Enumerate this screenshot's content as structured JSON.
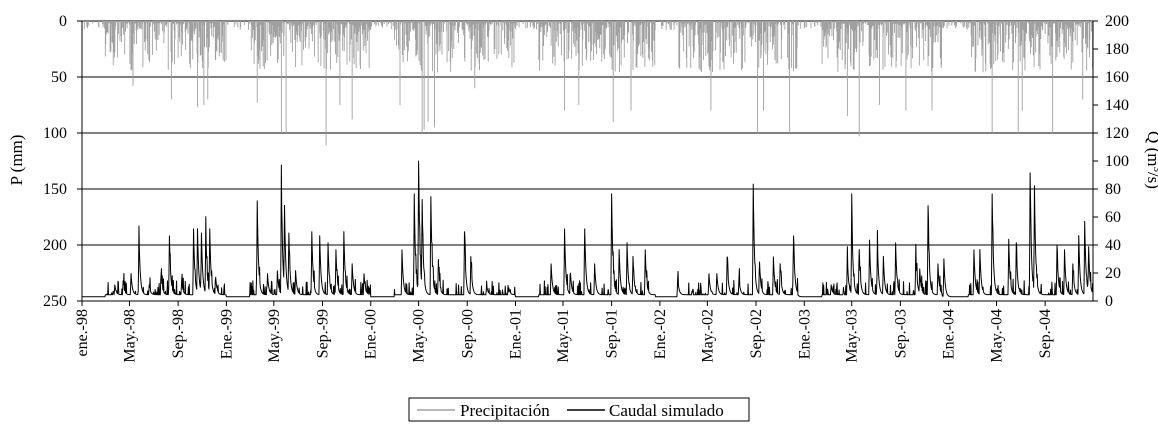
{
  "chart_data": {
    "type": "line",
    "title": "",
    "x_axis": {
      "type": "time",
      "range": [
        "1998-01-01",
        "2004-12-31"
      ],
      "tick_labels": [
        "ene.-98",
        "May.-98",
        "Sep.-98",
        "Ene.-99",
        "May.-99",
        "Sep.-99",
        "Ene.-00",
        "May.-00",
        "Sep.-00",
        "Ene.-01",
        "May.-01",
        "Sep.-01",
        "Ene.-02",
        "May.-02",
        "Sep.-02",
        "Ene.-03",
        "May.-03",
        "Sep.-03",
        "Ene.-04",
        "May.-04",
        "Sep.-04"
      ],
      "tick_dates": [
        "1998-01-01",
        "1998-05-01",
        "1998-09-01",
        "1999-01-01",
        "1999-05-01",
        "1999-09-01",
        "2000-01-01",
        "2000-05-01",
        "2000-09-01",
        "2001-01-01",
        "2001-05-01",
        "2001-09-01",
        "2002-01-01",
        "2002-05-01",
        "2002-09-01",
        "2003-01-01",
        "2003-05-01",
        "2003-09-01",
        "2004-01-01",
        "2004-05-01",
        "2004-09-01"
      ]
    },
    "y_axis_left": {
      "label": "P (mm)",
      "range": [
        0,
        250
      ],
      "inverted": true,
      "ticks": [
        0,
        50,
        100,
        150,
        200,
        250
      ]
    },
    "y_axis_right": {
      "label_main": "Q (m",
      "label_sup": "3",
      "label_tail": "/s)",
      "range": [
        0,
        200
      ],
      "ticks": [
        0,
        20,
        40,
        60,
        80,
        100,
        120,
        140,
        160,
        180,
        200
      ]
    },
    "grid": "horizontal",
    "legend_position": "bottom",
    "series": [
      {
        "name": "Precipitación",
        "axis": "left",
        "style": "bars-from-top",
        "color": "#a0a0a0",
        "wet_seasons": [
          {
            "start": "1998-03-01",
            "end": "1998-12-31",
            "peaks": [
              [
                "1998-05-10",
                58
              ],
              [
                "1998-08-15",
                70
              ],
              [
                "1998-10-20",
                77
              ],
              [
                "1998-11-05",
                75
              ],
              [
                "1998-11-15",
                70
              ]
            ]
          },
          {
            "start": "1999-03-01",
            "end": "1999-12-31",
            "peaks": [
              [
                "1999-03-20",
                73
              ],
              [
                "1999-05-20",
                100
              ],
              [
                "1999-06-01",
                100
              ],
              [
                "1999-09-10",
                111
              ],
              [
                "1999-10-15",
                75
              ],
              [
                "1999-11-15",
                88
              ]
            ]
          },
          {
            "start": "2000-03-01",
            "end": "2000-12-31",
            "peaks": [
              [
                "2000-03-15",
                75
              ],
              [
                "2000-05-10",
                100
              ],
              [
                "2000-05-15",
                97
              ],
              [
                "2000-05-25",
                90
              ],
              [
                "2000-06-10",
                95
              ],
              [
                "2000-09-20",
                60
              ]
            ]
          },
          {
            "start": "2001-03-01",
            "end": "2001-12-20",
            "peaks": [
              [
                "2001-05-05",
                80
              ],
              [
                "2001-06-10",
                75
              ],
              [
                "2001-09-05",
                90
              ],
              [
                "2001-10-20",
                80
              ]
            ]
          },
          {
            "start": "2002-02-15",
            "end": "2002-12-15",
            "peaks": [
              [
                "2002-05-10",
                80
              ],
              [
                "2002-09-05",
                100
              ],
              [
                "2002-09-20",
                80
              ],
              [
                "2002-11-25",
                100
              ]
            ]
          },
          {
            "start": "2003-02-15",
            "end": "2003-12-15",
            "peaks": [
              [
                "2003-04-20",
                85
              ],
              [
                "2003-05-20",
                103
              ],
              [
                "2003-07-10",
                75
              ],
              [
                "2003-09-15",
                80
              ],
              [
                "2003-11-20",
                80
              ]
            ]
          },
          {
            "start": "2004-02-20",
            "end": "2004-12-31",
            "peaks": [
              [
                "2004-04-20",
                100
              ],
              [
                "2004-06-25",
                100
              ],
              [
                "2004-07-05",
                80
              ],
              [
                "2004-09-20",
                100
              ],
              [
                "2004-12-05",
                70
              ]
            ]
          }
        ]
      },
      {
        "name": "Caudal simulado",
        "axis": "right",
        "style": "line",
        "color": "#000000",
        "baseflow": 3,
        "events": [
          [
            "1998-03-25",
            10
          ],
          [
            "1998-04-15",
            13
          ],
          [
            "1998-05-05",
            18
          ],
          [
            "1998-05-25",
            48
          ],
          [
            "1998-06-20",
            10
          ],
          [
            "1998-07-20",
            18
          ],
          [
            "1998-08-10",
            45
          ],
          [
            "1998-09-10",
            13
          ],
          [
            "1998-10-10",
            50
          ],
          [
            "1998-10-20",
            48
          ],
          [
            "1998-10-30",
            45
          ],
          [
            "1998-11-10",
            50
          ],
          [
            "1998-11-20",
            48
          ],
          [
            "1998-12-05",
            15
          ],
          [
            "1999-03-20",
            70
          ],
          [
            "1999-04-15",
            18
          ],
          [
            "1999-05-10",
            20
          ],
          [
            "1999-05-20",
            85
          ],
          [
            "1999-05-28",
            60
          ],
          [
            "1999-06-08",
            45
          ],
          [
            "1999-06-25",
            20
          ],
          [
            "1999-08-05",
            48
          ],
          [
            "1999-08-25",
            45
          ],
          [
            "1999-09-15",
            40
          ],
          [
            "1999-10-05",
            35
          ],
          [
            "1999-10-25",
            48
          ],
          [
            "1999-11-15",
            25
          ],
          [
            "1999-12-15",
            18
          ],
          [
            "2000-03-20",
            35
          ],
          [
            "2000-04-20",
            75
          ],
          [
            "2000-05-01",
            100
          ],
          [
            "2000-05-10",
            65
          ],
          [
            "2000-06-01",
            73
          ],
          [
            "2000-06-20",
            28
          ],
          [
            "2000-08-25",
            48
          ],
          [
            "2000-09-10",
            30
          ],
          [
            "2000-10-20",
            10
          ],
          [
            "2000-12-15",
            8
          ],
          [
            "2001-04-01",
            25
          ],
          [
            "2001-05-05",
            50
          ],
          [
            "2001-05-20",
            18
          ],
          [
            "2001-06-25",
            50
          ],
          [
            "2001-07-20",
            25
          ],
          [
            "2001-09-01",
            75
          ],
          [
            "2001-09-20",
            35
          ],
          [
            "2001-10-10",
            40
          ],
          [
            "2001-10-25",
            30
          ],
          [
            "2001-11-25",
            35
          ],
          [
            "2002-02-15",
            15
          ],
          [
            "2002-05-05",
            18
          ],
          [
            "2002-05-25",
            18
          ],
          [
            "2002-06-20",
            30
          ],
          [
            "2002-07-20",
            15
          ],
          [
            "2002-08-25",
            82
          ],
          [
            "2002-09-10",
            25
          ],
          [
            "2002-10-15",
            30
          ],
          [
            "2002-11-01",
            25
          ],
          [
            "2002-12-05",
            45
          ],
          [
            "2003-03-10",
            10
          ],
          [
            "2003-04-20",
            30
          ],
          [
            "2003-05-01",
            65
          ],
          [
            "2003-05-20",
            35
          ],
          [
            "2003-06-15",
            42
          ],
          [
            "2003-07-05",
            40
          ],
          [
            "2003-07-20",
            30
          ],
          [
            "2003-08-20",
            40
          ],
          [
            "2003-10-10",
            35
          ],
          [
            "2003-10-20",
            20
          ],
          [
            "2003-11-10",
            65
          ],
          [
            "2003-12-05",
            25
          ],
          [
            "2003-12-20",
            30
          ],
          [
            "2004-03-05",
            35
          ],
          [
            "2004-03-20",
            35
          ],
          [
            "2004-04-20",
            75
          ],
          [
            "2004-06-01",
            42
          ],
          [
            "2004-06-20",
            40
          ],
          [
            "2004-07-25",
            90
          ],
          [
            "2004-08-05",
            78
          ],
          [
            "2004-10-01",
            38
          ],
          [
            "2004-10-20",
            35
          ],
          [
            "2004-11-10",
            25
          ],
          [
            "2004-11-25",
            45
          ],
          [
            "2004-12-10",
            55
          ],
          [
            "2004-12-20",
            35
          ]
        ]
      }
    ]
  },
  "legend": {
    "items": [
      {
        "label": "Precipitación",
        "color": "#a0a0a0"
      },
      {
        "label": "Caudal simulado",
        "color": "#000000"
      }
    ]
  }
}
